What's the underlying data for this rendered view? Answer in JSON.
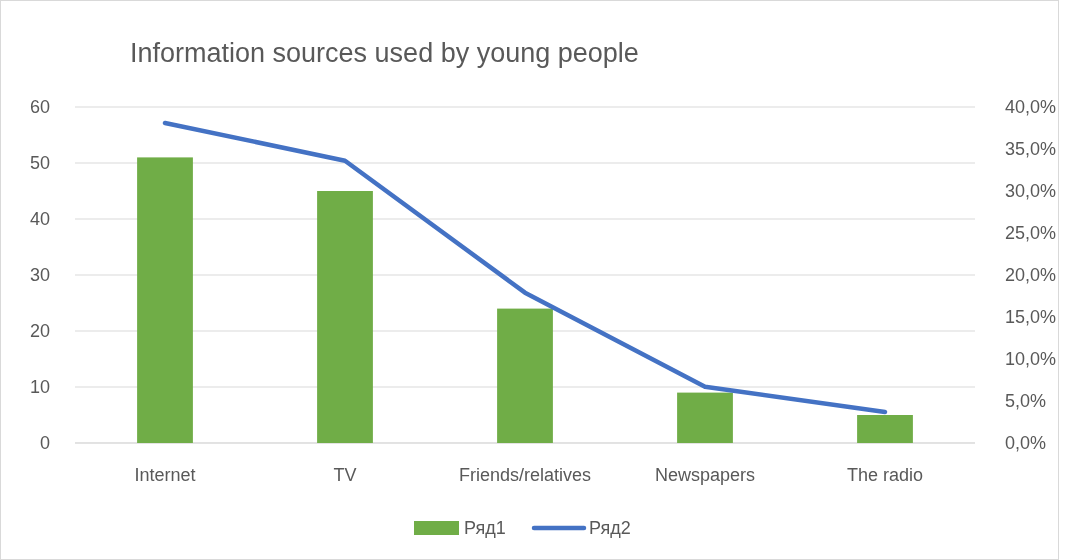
{
  "chart_data": {
    "type": "bar",
    "title": "Information sources used by young people",
    "categories": [
      "Internet",
      "TV",
      "Friends/relatives",
      "Newspapers",
      "The radio"
    ],
    "series": [
      {
        "name": "Ряд1",
        "color": "#70ad47",
        "values": [
          51,
          45,
          24,
          9,
          5
        ]
      },
      {
        "name": "Ряд2",
        "type": "line",
        "axis": "y2",
        "color": "#4472c4",
        "values": [
          38.1,
          33.6,
          17.9,
          6.7,
          3.7
        ]
      }
    ],
    "ylim": [
      0,
      60
    ],
    "yticks": [
      0,
      10,
      20,
      30,
      40,
      50,
      60
    ],
    "y2lim": [
      0,
      40
    ],
    "y2ticks": [
      {
        "value": 0,
        "label": "0,0%"
      },
      {
        "value": 5,
        "label": "5,0%"
      },
      {
        "value": 10,
        "label": "10,0%"
      },
      {
        "value": 15,
        "label": "15,0%"
      },
      {
        "value": 20,
        "label": "20,0%"
      },
      {
        "value": 25,
        "label": "25,0%"
      },
      {
        "value": 30,
        "label": "30,0%"
      },
      {
        "value": 35,
        "label": "35,0%"
      },
      {
        "value": 40,
        "label": "40,0%"
      }
    ],
    "grid": "y",
    "legend": "bottom",
    "marker": "none",
    "line_style": "solid"
  }
}
